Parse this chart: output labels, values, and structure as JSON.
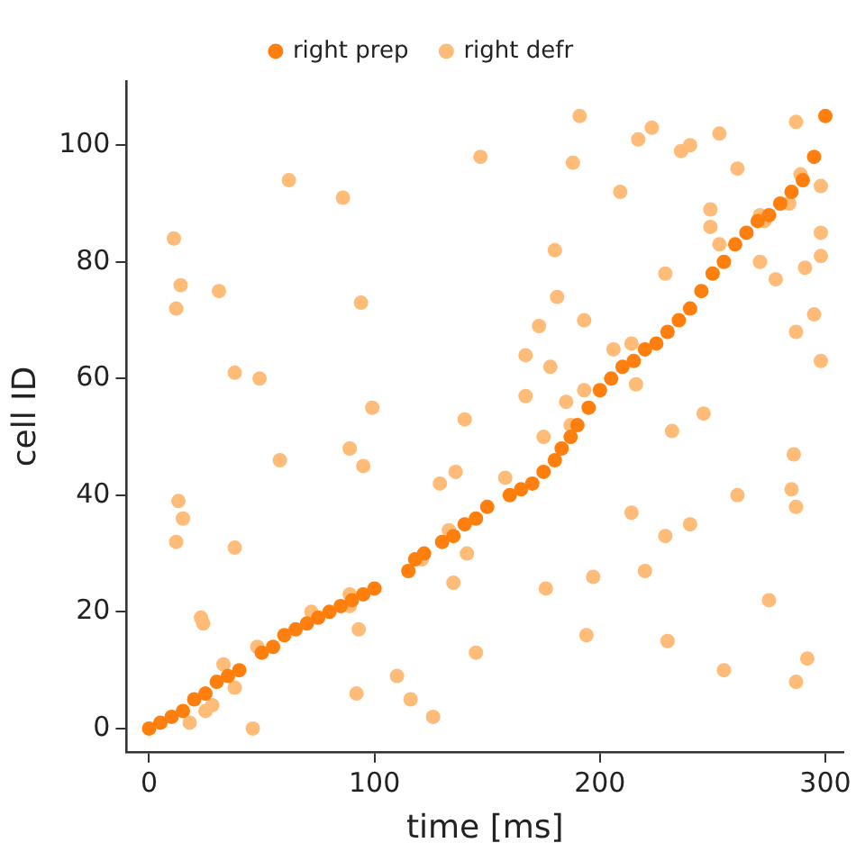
{
  "chart_data": {
    "type": "scatter",
    "xlabel": "time [ms]",
    "ylabel": "cell ID",
    "xlim": [
      -10,
      308
    ],
    "ylim": [
      -4,
      111
    ],
    "xticks": [
      0,
      100,
      200,
      300
    ],
    "yticks": [
      0,
      20,
      40,
      60,
      80,
      100
    ],
    "grid": false,
    "legend": "top",
    "marker": "circle",
    "series": [
      {
        "name": "right prep",
        "color": "#ff7f0e",
        "x": [
          0,
          5,
          10,
          15,
          20,
          25,
          30,
          35,
          40,
          50,
          55,
          60,
          65,
          70,
          75,
          80,
          85,
          90,
          95,
          100,
          115,
          118,
          122,
          130,
          135,
          140,
          145,
          150,
          160,
          165,
          170,
          175,
          180,
          183,
          187,
          190,
          195,
          200,
          205,
          210,
          215,
          220,
          225,
          230,
          235,
          240,
          245,
          250,
          255,
          260,
          265,
          270,
          275,
          280,
          285,
          290,
          295,
          300
        ],
        "values": [
          0,
          1,
          2,
          3,
          5,
          6,
          8,
          9,
          10,
          13,
          14,
          16,
          17,
          18,
          19,
          20,
          21,
          22,
          23,
          24,
          27,
          29,
          30,
          32,
          33,
          35,
          36,
          38,
          40,
          41,
          42,
          44,
          46,
          48,
          50,
          52,
          55,
          58,
          60,
          62,
          63,
          65,
          66,
          68,
          70,
          72,
          75,
          78,
          80,
          83,
          85,
          87,
          88,
          90,
          92,
          94,
          98,
          105
        ]
      },
      {
        "name": "right defr",
        "color": "#ffbb78",
        "x": [
          147,
          62,
          86,
          11,
          14,
          31,
          12,
          94,
          38,
          49,
          99,
          140,
          191,
          217,
          223,
          188,
          253,
          287,
          236,
          240,
          261,
          209,
          289,
          298,
          249,
          249,
          271,
          273,
          284,
          298,
          253,
          180,
          298,
          291,
          271,
          278,
          229,
          181,
          193,
          173,
          295,
          287,
          167,
          178,
          206,
          214,
          298,
          167,
          185,
          193,
          216,
          246,
          58,
          89,
          95,
          13,
          15,
          12,
          38,
          129,
          136,
          133,
          121,
          141,
          135,
          145,
          89,
          89,
          93,
          72,
          48,
          23,
          24,
          33,
          38,
          28,
          25,
          18,
          46,
          110,
          116,
          126,
          92,
          232,
          286,
          285,
          287,
          261,
          214,
          229,
          240,
          197,
          220,
          176,
          275,
          194,
          230,
          255,
          292,
          287,
          158,
          175,
          187
        ],
        "values": [
          98,
          94,
          91,
          84,
          76,
          75,
          72,
          73,
          61,
          60,
          55,
          53,
          105,
          101,
          103,
          97,
          102,
          104,
          99,
          100,
          96,
          92,
          95,
          93,
          89,
          86,
          88,
          87,
          90,
          85,
          83,
          82,
          81,
          79,
          80,
          77,
          78,
          74,
          70,
          69,
          71,
          68,
          64,
          62,
          65,
          66,
          63,
          57,
          56,
          58,
          59,
          54,
          46,
          48,
          45,
          39,
          36,
          32,
          31,
          42,
          44,
          34,
          29,
          30,
          25,
          13,
          23,
          21,
          17,
          20,
          14,
          19,
          18,
          11,
          7,
          4,
          3,
          1,
          0,
          9,
          5,
          2,
          6,
          51,
          47,
          41,
          38,
          40,
          37,
          33,
          35,
          26,
          27,
          24,
          22,
          16,
          15,
          10,
          12,
          8,
          43,
          50,
          52
        ]
      }
    ]
  }
}
